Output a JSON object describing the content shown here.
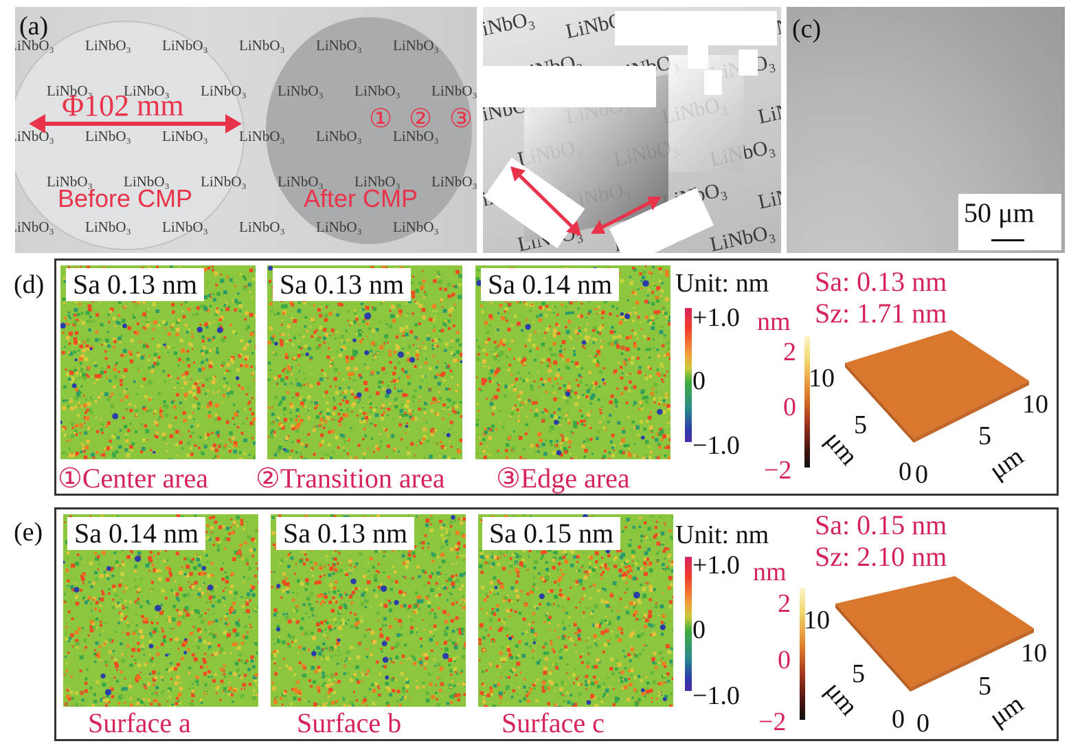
{
  "panel_a": {
    "label": "(a)",
    "diameter": "Φ102 mm",
    "before": "Before CMP",
    "after": "After CMP",
    "markers": [
      "①",
      "②",
      "③"
    ],
    "watermark_text": "LiNbO₃"
  },
  "panel_b": {
    "watermark_text": "LiNbO₃"
  },
  "panel_c": {
    "label": "(c)",
    "scale_bar": "50 μm"
  },
  "panel_d": {
    "label": "(d)",
    "maps": [
      {
        "sa": "Sa 0.13 nm",
        "caption": "①Center area"
      },
      {
        "sa": "Sa 0.13 nm",
        "caption": "②Transition area"
      },
      {
        "sa": "Sa 0.14 nm",
        "caption": "③Edge area"
      }
    ],
    "colorbar": {
      "unit": "Unit: nm",
      "max": "+1.0",
      "mid": "0",
      "min": "−1.0"
    },
    "stats": {
      "sa": "Sa: 0.13 nm",
      "sz": "Sz: 1.71 nm"
    },
    "surface3d": {
      "z_unit": "nm",
      "z_ticks": [
        "2",
        "0",
        "−2"
      ],
      "axis_ticks": [
        "10",
        "5",
        "0",
        "0",
        "5",
        "10"
      ],
      "axis_unit": "μm"
    }
  },
  "panel_e": {
    "label": "(e)",
    "maps": [
      {
        "sa": "Sa 0.14 nm",
        "caption": "Surface a"
      },
      {
        "sa": "Sa 0.13 nm",
        "caption": "Surface b"
      },
      {
        "sa": "Sa 0.15 nm",
        "caption": "Surface c"
      }
    ],
    "colorbar": {
      "unit": "Unit: nm",
      "max": "+1.0",
      "mid": "0",
      "min": "−1.0"
    },
    "stats": {
      "sa": "Sa: 0.15 nm",
      "sz": "Sz: 2.10 nm"
    },
    "surface3d": {
      "z_unit": "nm",
      "z_ticks": [
        "2",
        "0",
        "−2"
      ],
      "axis_ticks": [
        "10",
        "5",
        "0",
        "0",
        "5",
        "10"
      ],
      "axis_unit": "μm"
    }
  },
  "colors": {
    "accent": "#e8334a",
    "caption": "#d6245a",
    "surface": "#d9772e"
  }
}
